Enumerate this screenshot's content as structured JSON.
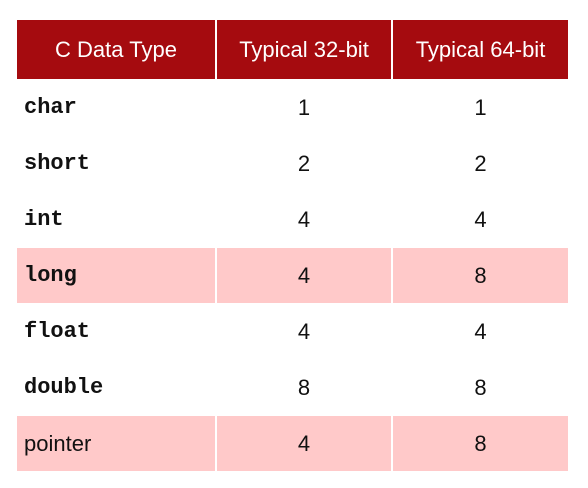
{
  "table": {
    "headers": [
      "C Data Type",
      "Typical 32-bit",
      "Typical 64-bit"
    ],
    "rows": [
      {
        "type": "char",
        "b32": "1",
        "b64": "1",
        "highlight": false,
        "mono": true
      },
      {
        "type": "short",
        "b32": "2",
        "b64": "2",
        "highlight": false,
        "mono": true
      },
      {
        "type": "int",
        "b32": "4",
        "b64": "4",
        "highlight": false,
        "mono": true
      },
      {
        "type": "long",
        "b32": "4",
        "b64": "8",
        "highlight": true,
        "mono": true
      },
      {
        "type": "float",
        "b32": "4",
        "b64": "4",
        "highlight": false,
        "mono": true
      },
      {
        "type": "double",
        "b32": "8",
        "b64": "8",
        "highlight": false,
        "mono": true
      },
      {
        "type": "pointer",
        "b32": "4",
        "b64": "8",
        "highlight": true,
        "mono": false
      }
    ]
  },
  "colors": {
    "header_bg": "#a50b0f",
    "header_text": "#ffffff",
    "highlight_bg": "#ffc9c9"
  }
}
